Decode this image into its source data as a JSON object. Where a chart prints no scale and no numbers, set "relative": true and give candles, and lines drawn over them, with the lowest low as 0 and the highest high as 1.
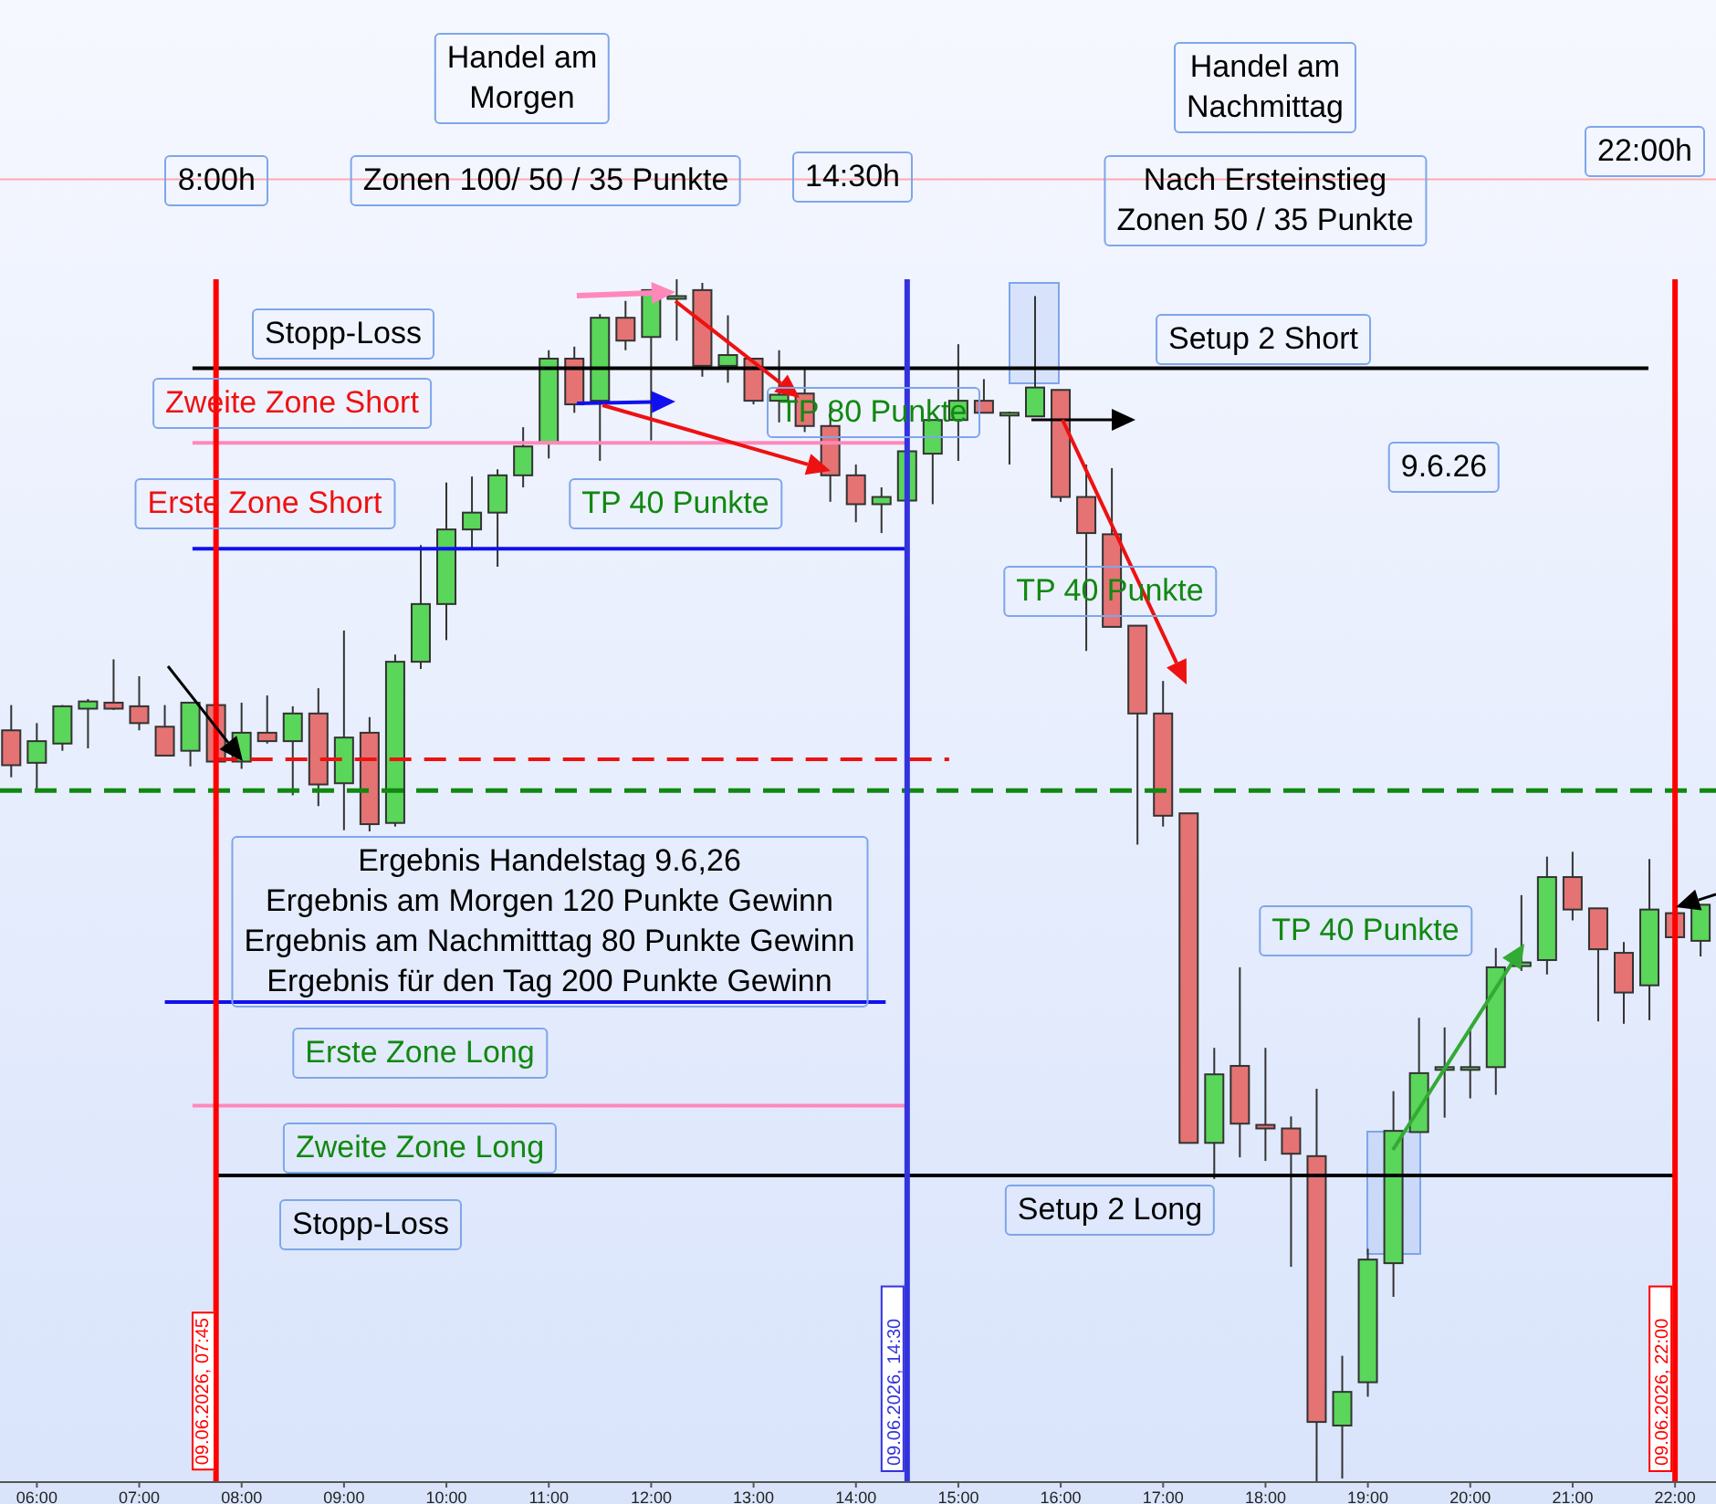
{
  "chart_data": {
    "type": "candlestick",
    "relative": true,
    "tick_labels": "x",
    "xlim": [
      5.64,
      22.4
    ],
    "xticks": [
      {
        "value": 6,
        "label": "06:00"
      },
      {
        "value": 7,
        "label": "07:00"
      },
      {
        "value": 8,
        "label": "08:00"
      },
      {
        "value": 9,
        "label": "09:00"
      },
      {
        "value": 10,
        "label": "10:00"
      },
      {
        "value": 11,
        "label": "11:00"
      },
      {
        "value": 12,
        "label": "12:00"
      },
      {
        "value": 13,
        "label": "13:00"
      },
      {
        "value": 14,
        "label": "14:00"
      },
      {
        "value": 15,
        "label": "15:00"
      },
      {
        "value": 16,
        "label": "16:00"
      },
      {
        "value": 17,
        "label": "17:00"
      },
      {
        "value": 18,
        "label": "18:00"
      },
      {
        "value": 19,
        "label": "19:00"
      },
      {
        "value": 20,
        "label": "20:00"
      },
      {
        "value": 21,
        "label": "21:00"
      },
      {
        "value": 22,
        "label": "22:00"
      }
    ],
    "x": [
      5.75,
      6,
      6.25,
      6.5,
      6.75,
      7,
      7.25,
      7.5,
      7.75,
      8,
      8.25,
      8.5,
      8.75,
      9,
      9.25,
      9.5,
      9.75,
      10,
      10.25,
      10.5,
      10.75,
      11,
      11.25,
      11.5,
      11.75,
      12,
      12.25,
      12.5,
      12.75,
      13,
      13.25,
      13.5,
      13.75,
      14,
      14.25,
      14.5,
      14.75,
      15,
      15.25,
      15.5,
      15.75,
      16,
      16.25,
      16.5,
      16.75,
      17,
      17.25,
      17.5,
      17.75,
      18,
      18.25,
      18.5,
      18.75,
      19,
      19.25,
      19.5,
      19.75,
      20,
      20.25,
      20.5,
      20.75,
      21,
      21.25,
      21.5,
      21.75,
      22,
      22.25
    ],
    "ohlc": [
      [
        0.625,
        0.646,
        0.586,
        0.596
      ],
      [
        0.598,
        0.631,
        0.575,
        0.616
      ],
      [
        0.614,
        0.646,
        0.608,
        0.645
      ],
      [
        0.643,
        0.651,
        0.61,
        0.649
      ],
      [
        0.648,
        0.684,
        0.642,
        0.643
      ],
      [
        0.645,
        0.67,
        0.625,
        0.631
      ],
      [
        0.628,
        0.646,
        0.604,
        0.604
      ],
      [
        0.608,
        0.648,
        0.595,
        0.648
      ],
      [
        0.646,
        0.646,
        0.599,
        0.599
      ],
      [
        0.599,
        0.648,
        0.593,
        0.623
      ],
      [
        0.623,
        0.654,
        0.614,
        0.616
      ],
      [
        0.616,
        0.645,
        0.571,
        0.639
      ],
      [
        0.639,
        0.66,
        0.562,
        0.58
      ],
      [
        0.581,
        0.708,
        0.542,
        0.619
      ],
      [
        0.623,
        0.636,
        0.541,
        0.547
      ],
      [
        0.548,
        0.688,
        0.545,
        0.682
      ],
      [
        0.682,
        0.779,
        0.676,
        0.73
      ],
      [
        0.73,
        0.831,
        0.7,
        0.792
      ],
      [
        0.792,
        0.836,
        0.776,
        0.806
      ],
      [
        0.806,
        0.842,
        0.761,
        0.837
      ],
      [
        0.837,
        0.877,
        0.827,
        0.861
      ],
      [
        0.864,
        0.941,
        0.851,
        0.934
      ],
      [
        0.934,
        0.944,
        0.889,
        0.896
      ],
      [
        0.899,
        0.971,
        0.849,
        0.968
      ],
      [
        0.968,
        0.982,
        0.941,
        0.949
      ],
      [
        0.952,
        0.991,
        0.866,
        0.991
      ],
      [
        0.986,
        1,
        0.949,
        0.986
      ],
      [
        0.991,
        0.997,
        0.919,
        0.928
      ],
      [
        0.928,
        0.97,
        0.914,
        0.937
      ],
      [
        0.934,
        0.934,
        0.896,
        0.899
      ],
      [
        0.899,
        0.941,
        0.881,
        0.904
      ],
      [
        0.905,
        0.925,
        0.873,
        0.878
      ],
      [
        0.878,
        0.895,
        0.815,
        0.837
      ],
      [
        0.837,
        0.846,
        0.798,
        0.813
      ],
      [
        0.813,
        0.827,
        0.789,
        0.819
      ],
      [
        0.816,
        0.857,
        0.816,
        0.857
      ],
      [
        0.855,
        0.883,
        0.813,
        0.883
      ],
      [
        0.883,
        0.946,
        0.849,
        0.899
      ],
      [
        0.899,
        0.917,
        0.889,
        0.889
      ],
      [
        0.889,
        0.89,
        0.846,
        0.889
      ],
      [
        0.886,
        0.986,
        0.886,
        0.91
      ],
      [
        0.908,
        0.908,
        0.815,
        0.819
      ],
      [
        0.819,
        0.846,
        0.691,
        0.789
      ],
      [
        0.788,
        0.843,
        0.711,
        0.711
      ],
      [
        0.712,
        0.712,
        0.53,
        0.639
      ],
      [
        0.639,
        0.666,
        0.545,
        0.554
      ],
      [
        0.556,
        0.556,
        0.282,
        0.282
      ],
      [
        0.282,
        0.361,
        0.252,
        0.339
      ],
      [
        0.346,
        0.428,
        0.27,
        0.298
      ],
      [
        0.297,
        0.361,
        0.267,
        0.294
      ],
      [
        0.294,
        0.304,
        0.179,
        0.273
      ],
      [
        0.271,
        0.327,
        0,
        0.05
      ],
      [
        0.047,
        0.105,
        0.003,
        0.075
      ],
      [
        0.083,
        0.194,
        0.071,
        0.185
      ],
      [
        0.182,
        0.325,
        0.154,
        0.292
      ],
      [
        0.291,
        0.386,
        0.291,
        0.34
      ],
      [
        0.343,
        0.378,
        0.303,
        0.345
      ],
      [
        0.345,
        0.377,
        0.319,
        0.345
      ],
      [
        0.345,
        0.444,
        0.322,
        0.428
      ],
      [
        0.429,
        0.488,
        0.425,
        0.432
      ],
      [
        0.434,
        0.52,
        0.422,
        0.503
      ],
      [
        0.503,
        0.524,
        0.467,
        0.476
      ],
      [
        0.477,
        0.477,
        0.383,
        0.443
      ],
      [
        0.44,
        0.449,
        0.381,
        0.407
      ],
      [
        0.413,
        0.518,
        0.384,
        0.476
      ],
      [
        0.473,
        0.473,
        0.453,
        0.453
      ],
      [
        0.45,
        0.48,
        0.437,
        0.48
      ]
    ],
    "colors": [
      "#e57373",
      "#5ad65a",
      "#5ad65a",
      "#5ad65a",
      "#e57373",
      "#e57373",
      "#e57373",
      "#5ad65a",
      "#e57373",
      "#5ad65a",
      "#e57373",
      "#5ad65a",
      "#e57373",
      "#5ad65a",
      "#e57373",
      "#5ad65a",
      "#5ad65a",
      "#5ad65a",
      "#5ad65a",
      "#5ad65a",
      "#5ad65a",
      "#5ad65a",
      "#e57373",
      "#5ad65a",
      "#e57373",
      "#5ad65a",
      "#5ad65a",
      "#e57373",
      "#5ad65a",
      "#e57373",
      "#5ad65a",
      "#e57373",
      "#e57373",
      "#e57373",
      "#5ad65a",
      "#5ad65a",
      "#5ad65a",
      "#5ad65a",
      "#e57373",
      "#5ad65a",
      "#5ad65a",
      "#e57373",
      "#e57373",
      "#e57373",
      "#e57373",
      "#e57373",
      "#e57373",
      "#5ad65a",
      "#e57373",
      "#e57373",
      "#e57373",
      "#e57373",
      "#5ad65a",
      "#5ad65a",
      "#5ad65a",
      "#5ad65a",
      "#5ad65a",
      "#5ad65a",
      "#5ad65a",
      "#5ad65a",
      "#5ad65a",
      "#e57373",
      "#e57373",
      "#e57373",
      "#5ad65a",
      "#e57373",
      "#5ad65a"
    ],
    "series": [
      {
        "type": "line",
        "x": [
          7.52,
          21.74
        ],
        "values": [
          0.926,
          0.926
        ],
        "color": "#000000"
      },
      {
        "type": "line",
        "x": [
          7.52,
          14.5
        ],
        "values": [
          0.864,
          0.864
        ],
        "color": "#ff88bb"
      },
      {
        "type": "line",
        "x": [
          7.52,
          14.5
        ],
        "values": [
          0.776,
          0.776
        ],
        "color": "#1010ee"
      },
      {
        "type": "line",
        "x": [
          7.75,
          14.91
        ],
        "values": [
          0.601,
          0.601
        ],
        "color": "#ee1111",
        "line_style": "dashed"
      },
      {
        "type": "line",
        "x": [
          7.25,
          14.29
        ],
        "values": [
          0.399,
          0.399
        ],
        "color": "#1010ee"
      },
      {
        "type": "line",
        "x": [
          7.52,
          14.5
        ],
        "values": [
          0.313,
          0.313
        ],
        "color": "#ff88bb"
      },
      {
        "type": "line",
        "x": [
          7.75,
          22
        ],
        "values": [
          0.255,
          0.255
        ],
        "color": "#000000"
      }
    ],
    "ref_lines": [
      {
        "axis": "y",
        "value": 0.575,
        "color": "#118811",
        "line_style": "dashed"
      },
      {
        "axis": "y",
        "value": 1.083,
        "color": "#ffaaaa"
      },
      {
        "axis": "x",
        "value": 7.75,
        "color": "#ff0000"
      },
      {
        "axis": "x",
        "value": 14.5,
        "label": "09.06.2026, 14:30",
        "color": "#3333dd"
      },
      {
        "axis": "x",
        "value": 22,
        "label": "09.06.2026, 22:00",
        "color": "#ff0000"
      }
    ],
    "annotations": [
      "Handel am\nMorgen",
      "Zonen 100/ 50 / 35 Punkte",
      {
        "text": "8:00h",
        "x": 8,
        "y": 1.083
      },
      "14:30h",
      "22:00h",
      "Handel am\nNachmittag",
      "Nach Ersteinstieg\nZonen 50 / 35 Punkte",
      "9.6.26",
      "Ergebnis Handelstag 9.6,26\nErgebnis am Morgen 120 Punkte Gewinn\nErgebnis am Nachmitttag 80 Punkte Gewinn\nErgebnis für den Tag 200 Punkte Gewinn",
      "Stopp-Loss",
      "Zweite Zone Short",
      "Erste Zone Short",
      "TP  40 Punkte",
      {
        "text": "TP  80 Punkte",
        "x": 13.45,
        "y": 0.902
      },
      "Setup 2 Short",
      "TP  40 Punkte",
      "Erste Zone Long",
      "Zweite Zone Long",
      "Stopp-Loss",
      "Setup 2 Long",
      "TP  40 Punkte",
      "09.06.2026, 07:45"
    ]
  }
}
